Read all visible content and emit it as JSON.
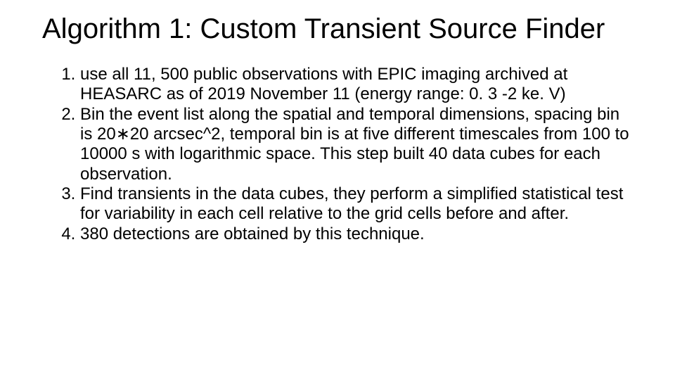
{
  "title": "Algorithm 1:  Custom Transient Source Finder",
  "title_fontsize": 40,
  "body_fontsize": 24,
  "text_color": "#000000",
  "background_color": "#ffffff",
  "list_type": "ordered",
  "steps": [
    "use all 11, 500 public observations with EPIC imaging archived at HEASARC as of 2019 November 11 (energy  range:  0. 3 -2 ke. V)",
    "Bin  the  event  list  along  the  spatial  and  temporal dimensions,  spacing  bin  is  20∗20  arcsec^2,  temporal  bin is  at  five  different  timescales  from  100  to  10000 s  with logarithmic  space.  This  step  built  40  data  cubes  for  each observation.",
    "Find  transients  in  the  data  cubes,  they  perform a simplified statistical test for variability in each cell relative to the grid cells before and after.",
    "380  detections  are  obtained  by  this  technique."
  ]
}
